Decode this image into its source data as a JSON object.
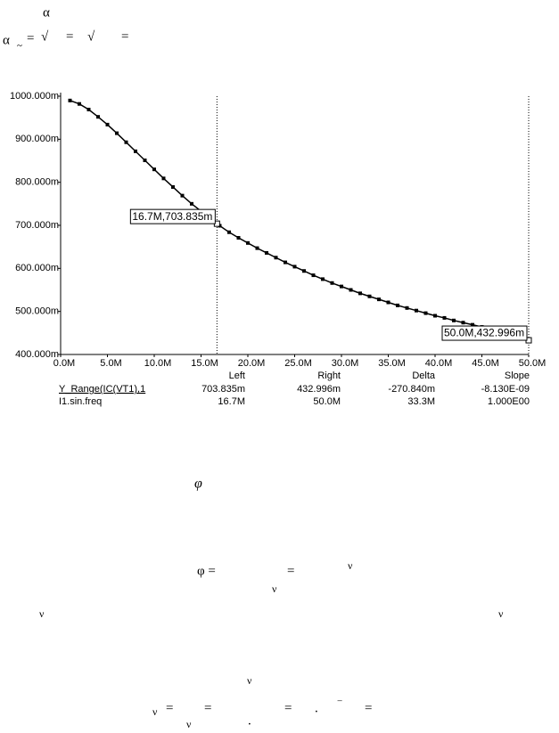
{
  "formulas": [
    "α",
    "~",
    "=",
    "α",
    "√",
    "=",
    "√",
    "=",
    "φ",
    "φ =",
    "=",
    "ν",
    "ν",
    "ν",
    "ν",
    "ν",
    "ν",
    "=",
    "=",
    "ν",
    ".",
    "=",
    ".",
    "−",
    "="
  ],
  "chart_data": {
    "type": "line",
    "x": [
      1,
      2,
      3,
      4,
      5,
      6,
      7,
      8,
      9,
      10,
      11,
      12,
      13,
      14,
      15,
      16,
      17,
      18,
      19,
      20,
      21,
      22,
      23,
      24,
      25,
      26,
      27,
      28,
      29,
      30,
      31,
      32,
      33,
      34,
      35,
      36,
      37,
      38,
      39,
      40,
      41,
      42,
      43,
      44,
      45,
      46,
      47,
      48,
      49,
      50
    ],
    "series": [
      {
        "color": "#000000",
        "values": [
          990,
          982,
          969,
          952,
          934,
          914,
          893,
          872,
          851,
          830,
          809,
          789,
          769,
          750,
          733,
          715,
          699,
          684,
          671,
          659,
          647,
          636,
          625,
          614,
          604,
          594,
          584,
          575,
          566,
          558,
          550,
          542,
          535,
          528,
          521,
          514,
          508,
          502,
          496,
          490,
          485,
          479,
          474,
          469,
          464,
          459,
          454,
          448,
          441,
          433
        ]
      }
    ],
    "xlim": [
      0,
      50
    ],
    "xticks": [
      {
        "value": 0,
        "label": "0.0M"
      },
      {
        "value": 5,
        "label": "5.0M"
      },
      {
        "value": 10,
        "label": "10.0M"
      },
      {
        "value": 15,
        "label": "15.0M"
      },
      {
        "value": 20,
        "label": "20.0M"
      },
      {
        "value": 25,
        "label": "25.0M"
      },
      {
        "value": 30,
        "label": "30.0M"
      },
      {
        "value": 35,
        "label": "35.0M"
      },
      {
        "value": 40,
        "label": "40.0M"
      },
      {
        "value": 45,
        "label": "45.0M"
      },
      {
        "value": 50,
        "label": "50.0M"
      }
    ],
    "ylim": [
      400,
      1000
    ],
    "yticks": [
      {
        "value": 400,
        "label": "400.000m"
      },
      {
        "value": 500,
        "label": "500.000m"
      },
      {
        "value": 600,
        "label": "600.000m"
      },
      {
        "value": 700,
        "label": "700.000m"
      },
      {
        "value": 800,
        "label": "800.000m"
      },
      {
        "value": 900,
        "label": "900.000m"
      },
      {
        "value": 1000,
        "label": "1000.000m"
      }
    ],
    "grid": false,
    "cursors": [
      {
        "x": 16.7,
        "y": 703.835,
        "label": "16.7M,703.835m"
      },
      {
        "x": 50,
        "y": 432.996,
        "label": "50.0M,432.996m"
      }
    ]
  },
  "cursor_table": {
    "header": [
      "Left",
      "Right",
      "Delta",
      "Slope"
    ],
    "rows": [
      [
        "Y_Range(IC(VT1),1",
        "703.835m",
        "432.996m",
        "-270.840m",
        "-8.130E-09"
      ],
      [
        "I1.sin.freq",
        "16.7M",
        "50.0M",
        "33.3M",
        "1.000E00"
      ]
    ]
  }
}
